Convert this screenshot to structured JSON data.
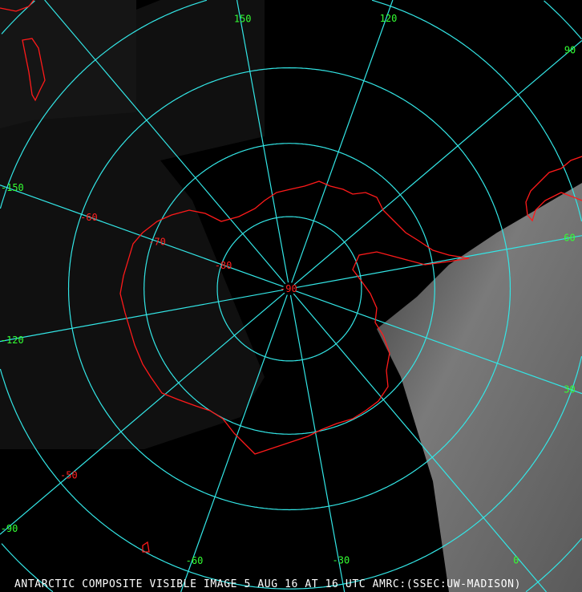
{
  "caption": "ANTARCTIC COMPOSITE VISIBLE IMAGE 5 AUG 16 AT 16 UTC AMRC:(SSEC:UW-MADISON)",
  "projection": "south polar stereographic",
  "colors": {
    "graticule": "#33e6e6",
    "coastline": "#ff1a1a",
    "longitude_labels": "#33ff33",
    "latitude_labels": "#ff2020",
    "caption": "#ffffff",
    "background": "#000000"
  },
  "longitude_labels": [
    {
      "value": 0,
      "text": "0"
    },
    {
      "value": -30,
      "text": "-30"
    },
    {
      "value": -60,
      "text": "-60"
    },
    {
      "value": -90,
      "text": "-90"
    },
    {
      "value": -120,
      "text": "-120"
    },
    {
      "value": -150,
      "text": "-150"
    },
    {
      "value": 150,
      "text": "150"
    },
    {
      "value": 120,
      "text": "120"
    },
    {
      "value": 90,
      "text": "90"
    },
    {
      "value": 60,
      "text": "60"
    },
    {
      "value": 30,
      "text": "30"
    }
  ],
  "latitude_labels": [
    {
      "value": -90,
      "text": "-90"
    },
    {
      "value": -80,
      "text": "-80"
    },
    {
      "value": -70,
      "text": "-70"
    },
    {
      "value": -60,
      "text": "-60"
    },
    {
      "value": -50,
      "text": "-50"
    }
  ]
}
